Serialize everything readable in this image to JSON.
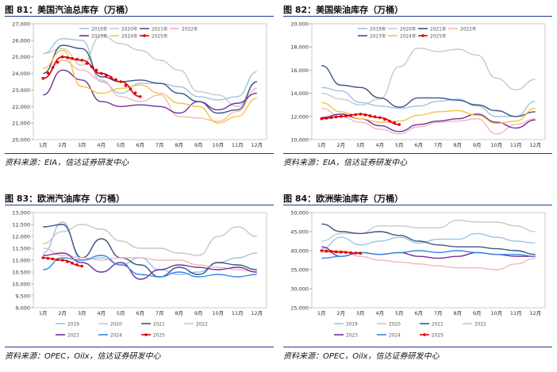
{
  "months": [
    "1月",
    "2月",
    "3月",
    "4月",
    "5月",
    "6月",
    "7月",
    "8月",
    "9月",
    "10月",
    "11月",
    "12月"
  ],
  "charts": [
    {
      "title": "图 81：美国汽油总库存（万桶）",
      "source": "资料来源：EIA，信达证券研发中心",
      "legend_cols": 4,
      "chart_data": {
        "type": "line",
        "ylim": [
          20000,
          27000
        ],
        "yticks": [
          20000,
          21000,
          22000,
          23000,
          24000,
          25000,
          26000,
          27000
        ],
        "legend_placement": "top",
        "series": [
          {
            "name": "2019年",
            "color": "#9dc3e6",
            "values": [
              25200,
              26100,
              26000,
              23500,
              22800,
              23400,
              23400,
              23200,
              22600,
              22400,
              22600,
              24100
            ]
          },
          {
            "name": "2020年",
            "color": "#c8c8c8",
            "values": [
              25200,
              25500,
              24500,
              26300,
              25800,
              25400,
              24800,
              24200,
              22900,
              22700,
              22000,
              23500
            ]
          },
          {
            "name": "2021年",
            "color": "#3b5584",
            "values": [
              24000,
              25700,
              25500,
              23800,
              23500,
              23600,
              23400,
              22800,
              22300,
              21600,
              21800,
              23500
            ]
          },
          {
            "name": "2022年",
            "color": "#f4b6b6",
            "values": [
              23700,
              24800,
              24200,
              23600,
              22600,
              22300,
              22700,
              21400,
              21300,
              21100,
              21700,
              23100
            ]
          },
          {
            "name": "2023年",
            "color": "#7030a0",
            "values": [
              22700,
              24200,
              23600,
              22300,
              22000,
              22100,
              22000,
              21600,
              22300,
              21800,
              22200,
              22800
            ]
          },
          {
            "name": "2024年",
            "color": "#f7c242",
            "values": [
              24300,
              25400,
              23200,
              22800,
              23100,
              23300,
              22800,
              22200,
              22000,
              21000,
              21400,
              22500
            ]
          },
          {
            "name": "2025年",
            "color": "#e00000",
            "marker": true,
            "values": [
              23700,
              25000,
              24800,
              24000,
              23500,
              22600
            ]
          }
        ]
      }
    },
    {
      "title": "图 82：美国柴油库存（万桶）",
      "source": "资料来源：EIA，信达证券研发中心",
      "legend_cols": 4,
      "chart_data": {
        "type": "line",
        "ylim": [
          10000,
          20000
        ],
        "yticks": [
          10000,
          12000,
          14000,
          16000,
          18000,
          20000
        ],
        "legend_placement": "top",
        "series": [
          {
            "name": "2019年",
            "color": "#9dc3e6",
            "values": [
              14500,
              14200,
              13200,
              12900,
              12700,
              12900,
              13300,
              13500,
              12900,
              12000,
              12000,
              13300
            ]
          },
          {
            "name": "2020年",
            "color": "#c8c8c8",
            "values": [
              14000,
              13500,
              13000,
              13500,
              16300,
              17900,
              17600,
              17800,
              17300,
              15300,
              14300,
              15200
            ]
          },
          {
            "name": "2021年",
            "color": "#3b5584",
            "values": [
              16400,
              14700,
              14500,
              13600,
              12800,
              13600,
              13600,
              13400,
              13000,
              12500,
              12000,
              12400
            ]
          },
          {
            "name": "2022年",
            "color": "#f4b6b6",
            "values": [
              12700,
              12000,
              11500,
              10900,
              10500,
              11100,
              11500,
              11600,
              11800,
              10500,
              11300,
              11800
            ]
          },
          {
            "name": "2023年",
            "color": "#7030a0",
            "values": [
              11900,
              12200,
              11800,
              11200,
              10700,
              11300,
              11600,
              11800,
              12200,
              11500,
              11000,
              11700
            ]
          },
          {
            "name": "2024年",
            "color": "#f7c242",
            "values": [
              13200,
              12400,
              11800,
              11500,
              11600,
              12100,
              12400,
              12500,
              12100,
              11400,
              11600,
              12700
            ]
          },
          {
            "name": "2025年",
            "color": "#e00000",
            "marker": true,
            "values": [
              11800,
              12000,
              12200,
              11900,
              11300
            ]
          }
        ]
      }
    },
    {
      "title": "图 83：欧洲汽油库存（万桶）",
      "source": "资料来源：OPEC，Oilx，信达证券研发中心",
      "legend_cols": 4,
      "chart_data": {
        "type": "line",
        "ylim": [
          9000,
          13000
        ],
        "yticks": [
          9000,
          9500,
          10000,
          10500,
          11000,
          11500,
          12000,
          12500,
          13000
        ],
        "legend_placement": "bottom",
        "series": [
          {
            "name": "2019",
            "color": "#9dc3e6",
            "values": [
              11300,
              12600,
              11000,
              11100,
              10800,
              11100,
              10600,
              10400,
              10500,
              10900,
              11100,
              11300
            ]
          },
          {
            "name": "2020",
            "color": "#c8c8c8",
            "values": [
              11700,
              12200,
              12500,
              12300,
              11800,
              11500,
              11500,
              11300,
              11200,
              12000,
              12400,
              12000
            ]
          },
          {
            "name": "2021",
            "color": "#3b5584",
            "values": [
              12400,
              12500,
              11100,
              11900,
              11100,
              10800,
              10300,
              10700,
              10400,
              10900,
              10800,
              10600
            ]
          },
          {
            "name": "2022",
            "color": "#f4b6b6",
            "values": [
              11500,
              11200,
              11100,
              11000,
              11100,
              11100,
              11000,
              11000,
              10800,
              10700,
              10600,
              10500
            ]
          },
          {
            "name": "2023",
            "color": "#7030a0",
            "values": [
              11200,
              11300,
              10900,
              10500,
              10900,
              10200,
              10600,
              10800,
              10700,
              10600,
              10700,
              10500
            ]
          },
          {
            "name": "2024",
            "color": "#3a86e8",
            "values": [
              10600,
              11100,
              11000,
              11200,
              10800,
              10400,
              10300,
              10500,
              10300,
              10400,
              10300,
              10400
            ]
          },
          {
            "name": "2025",
            "color": "#e00000",
            "marker": true,
            "values": [
              11100,
              11000,
              10750
            ]
          }
        ]
      }
    },
    {
      "title": "图 84：欧洲柴油库存（万桶）",
      "source": "资料来源：OPEC，Oilx，信达证券研发中心",
      "legend_cols": 4,
      "chart_data": {
        "type": "line",
        "ylim": [
          25000,
          50000
        ],
        "yticks": [
          25000,
          30000,
          35000,
          40000,
          45000,
          50000
        ],
        "legend_placement": "bottom",
        "series": [
          {
            "name": "2019",
            "color": "#9dc3e6",
            "values": [
              40500,
              43500,
              41500,
              42500,
              43500,
              42000,
              43000,
              43000,
              44500,
              43500,
              42500,
              42000
            ]
          },
          {
            "name": "2020",
            "color": "#c8c8c8",
            "values": [
              42500,
              44500,
              44500,
              46500,
              46500,
              46000,
              46000,
              48000,
              47500,
              47500,
              46500,
              45000
            ]
          },
          {
            "name": "2021",
            "color": "#3b5584",
            "values": [
              47000,
              45000,
              44500,
              45000,
              44000,
              42500,
              41500,
              41000,
              41000,
              40500,
              40000,
              39000
            ]
          },
          {
            "name": "2022",
            "color": "#f4b6b6",
            "values": [
              39500,
              40000,
              38500,
              37500,
              37000,
              36500,
              36000,
              35500,
              35500,
              35000,
              36500,
              38000
            ]
          },
          {
            "name": "2023",
            "color": "#7030a0",
            "values": [
              41000,
              38500,
              39500,
              39000,
              39500,
              38500,
              38000,
              38500,
              39500,
              39000,
              38500,
              38500
            ]
          },
          {
            "name": "2024",
            "color": "#3a86e8",
            "values": [
              38000,
              38500,
              39500,
              39000,
              39500,
              40000,
              39500,
              40000,
              39500,
              39000,
              39000,
              38500
            ]
          },
          {
            "name": "2025",
            "color": "#e00000",
            "marker": true,
            "values": [
              40000,
              39600,
              39300
            ]
          }
        ]
      }
    }
  ]
}
